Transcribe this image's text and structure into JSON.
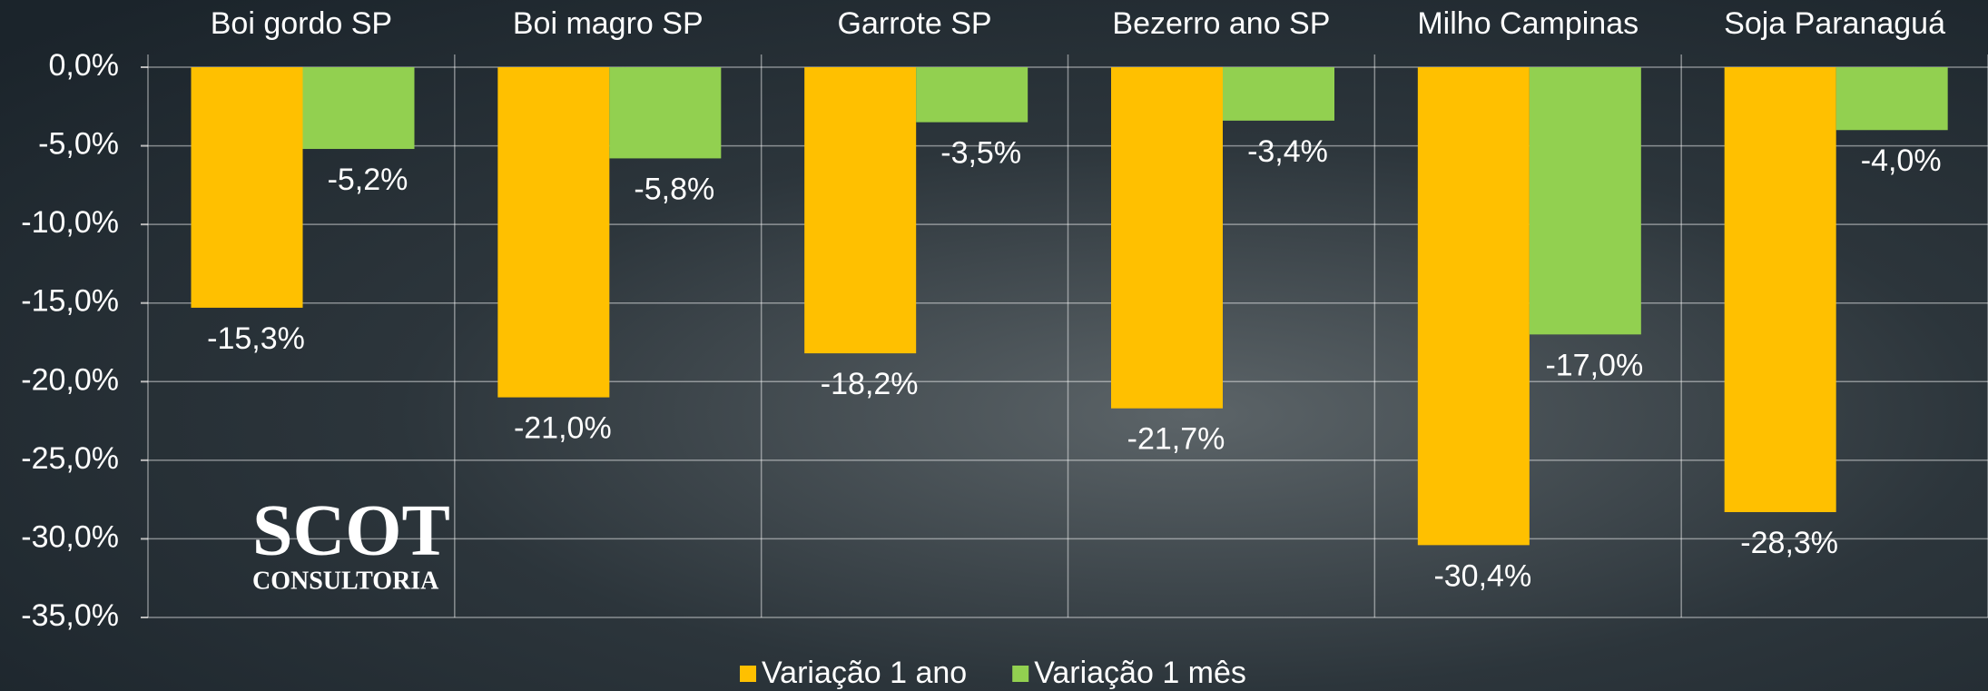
{
  "chart_data": {
    "type": "bar",
    "categories": [
      "Boi gordo SP",
      "Boi magro SP",
      "Garrote SP",
      "Bezerro ano SP",
      "Milho Campinas",
      "Soja Paranaguá"
    ],
    "series": [
      {
        "name": "Variação 1 ano",
        "color": "#ffc000",
        "values": [
          -15.3,
          -21.0,
          -18.2,
          -21.7,
          -30.4,
          -28.3
        ],
        "value_labels": [
          "-15,3%",
          "-21,0%",
          "-18,2%",
          "-21,7%",
          "-30,4%",
          "-28,3%"
        ]
      },
      {
        "name": "Variação 1 mês",
        "color": "#92d050",
        "values": [
          -5.2,
          -5.8,
          -3.5,
          -3.4,
          -17.0,
          -4.0
        ],
        "value_labels": [
          "-5,2%",
          "-5,8%",
          "-3,5%",
          "-3,4%",
          "-17,0%",
          "-4,0%"
        ]
      }
    ],
    "ylim": [
      -35,
      0
    ],
    "yticks": [
      {
        "value": 0,
        "label": "0,0%"
      },
      {
        "value": -5,
        "label": "-5,0%"
      },
      {
        "value": -10,
        "label": "-10,0%"
      },
      {
        "value": -15,
        "label": "-15,0%"
      },
      {
        "value": -20,
        "label": "-20,0%"
      },
      {
        "value": -25,
        "label": "-25,0%"
      },
      {
        "value": -30,
        "label": "-30,0%"
      },
      {
        "value": -35,
        "label": "-35,0%"
      }
    ],
    "grid": true,
    "legend": "bottom",
    "logo": {
      "name": "SCOT",
      "subtitle": "CONSULTORIA"
    }
  }
}
